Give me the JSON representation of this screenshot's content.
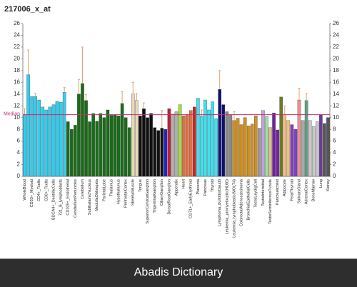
{
  "chart_data": {
    "type": "bar",
    "title": "217006_x_at",
    "categories": [
      "WholeBlood",
      null,
      "CD33+_Myeloid",
      null,
      "CD4+_Tcells",
      null,
      "CD8+_Tcells",
      null,
      "BDCA4+_DentriticCells",
      null,
      "721_B_lymphoblasts",
      null,
      "CD105+_Endothelial",
      null,
      "CerebellumPeduncles",
      null,
      "Cerebellum",
      null,
      "SubthalamicNucleus",
      null,
      "MedullaOblongata",
      null,
      "ParietalLobe",
      null,
      "Thalamus",
      null,
      "Hypothalamus",
      null,
      "PrefrontalCortex",
      null,
      "SkeletalMuscle",
      null,
      "Tongue",
      null,
      "SuperiorCervicalGanglion",
      null,
      "TrigeminalGanglion",
      null,
      "CiliaryGanglion",
      null,
      "DorsalRootGanglion",
      null,
      "Appendix",
      null,
      "Heart",
      null,
      "CD71+_EarlyErythroid",
      null,
      "Placenta",
      null,
      "Pancreas",
      null,
      "Thyroid",
      null,
      "Lymphoma_burkitts(Daudi)",
      null,
      "Leukemia_promyelocytic(HL60)",
      null,
      "Leukemia_lymphoblastic(MOLT4)",
      null,
      "ColorectalAdenocarcinoma",
      null,
      "BronchialEpithelialCells",
      null,
      "TestisLeydigCell",
      null,
      "TestisInterstitial",
      null,
      "TestisSeminiferousTubule",
      null,
      "PancreaticIslet",
      null,
      "Adipocyte",
      null,
      "FetalThyroid",
      null,
      "SalivaryGland",
      null,
      "AdrenalCortex",
      null,
      "BoneMarrow",
      null,
      "Lung",
      null,
      "Kidney"
    ],
    "values": [
      10.5,
      17.3,
      13.6,
      13.6,
      13,
      11.8,
      11.3,
      11.8,
      12.2,
      12.8,
      12.6,
      14.3,
      9.3,
      8,
      8.7,
      14,
      15.8,
      12.9,
      9.3,
      10.7,
      9.4,
      10.7,
      10,
      11.3,
      10.4,
      10.5,
      10.3,
      12.4,
      10,
      8.3,
      14,
      12.9,
      10.3,
      11.5,
      10,
      10.7,
      8.3,
      7.8,
      8.2,
      8,
      11.5,
      10.6,
      11,
      12.2,
      10.3,
      10.5,
      11.2,
      11.8,
      13.3,
      10.3,
      13,
      11.3,
      12.7,
      9.8,
      14.8,
      12.2,
      11,
      10.5,
      9.5,
      9.9,
      8.8,
      10,
      8.6,
      8.9,
      10.3,
      8.2,
      11.2,
      10.2,
      8.3,
      10.8,
      7.9,
      13.5,
      10.5,
      9.5,
      8.8,
      8,
      13,
      9.5,
      12.9,
      9.5,
      8.5,
      9.3,
      10.5,
      9,
      10
    ],
    "colors": [
      "#33ccee",
      "#33ccee",
      "#33ccee",
      "#33ccee",
      "#33ccee",
      "#33ccee",
      "#33ccee",
      "#33ccee",
      "#33ccee",
      "#33ccee",
      "#33ccee",
      "#33ccee",
      "#1a6b1a",
      "#1a6b1a",
      "#1a6b1a",
      "#1a6b1a",
      "#1a6b1a",
      "#1a6b1a",
      "#1a6b1a",
      "#1a6b1a",
      "#1a6b1a",
      "#1a6b1a",
      "#1a6b1a",
      "#1a6b1a",
      "#1a6b1a",
      "#1a6b1a",
      "#1a6b1a",
      "#1a6b1a",
      "#1a6b1a",
      "#1a6b1a",
      "#e8d8b8",
      "#e8d8b8",
      "#111111",
      "#111111",
      "#111111",
      "#111111",
      "#111111",
      "#111111",
      "#111111",
      "#2020d0",
      "#c02030",
      "#b0b0b0",
      "#b0b0b0",
      "#a0e040",
      "#e07040",
      "#e07040",
      "#e07040",
      "#d02020",
      "#40e0f0",
      "#40e0f0",
      "#40e0f0",
      "#40e0f0",
      "#40e0f0",
      "#40e0f0",
      "#101070",
      "#101070",
      "#888888",
      "#888888",
      "#d09020",
      "#d09020",
      "#d09020",
      "#d09020",
      "#d09020",
      "#d09020",
      "#d09020",
      "#9a9a9a",
      "#c0a0e0",
      "#a0e0a0",
      "#d8c090",
      "#7020a0",
      "#7020a0",
      "#6b7a2a",
      "#f0c080",
      "#f0c080",
      "#8040c0",
      "#8040c0",
      "#e89090",
      "#a8a8a8",
      "#60a080",
      "#c8c8c8",
      "#c8c8c8",
      "#c8c8c8",
      "#6a3aa0",
      "#555555",
      "#555555"
    ],
    "errors": [
      1,
      4.2,
      null,
      0.5,
      null,
      null,
      null,
      null,
      null,
      null,
      null,
      0.8,
      null,
      null,
      null,
      2.5,
      6.2,
      1,
      null,
      null,
      null,
      null,
      null,
      null,
      null,
      null,
      null,
      2,
      null,
      null,
      2,
      1.2,
      null,
      1,
      null,
      null,
      null,
      null,
      3,
      null,
      null,
      null,
      null,
      null,
      null,
      null,
      null,
      null,
      null,
      1,
      null,
      null,
      null,
      null,
      3.2,
      null,
      null,
      null,
      1.5,
      null,
      null,
      null,
      null,
      null,
      null,
      null,
      null,
      null,
      null,
      null,
      null,
      null,
      1.5,
      null,
      null,
      null,
      2,
      null,
      1.2,
      null,
      null,
      null,
      null,
      null,
      null
    ],
    "error_color": "#e0a070",
    "median": 10.5,
    "median_label": "Median",
    "median_color": "#c03070",
    "ylim": [
      0,
      26
    ],
    "yticks": [
      0,
      2,
      4,
      6,
      8,
      10,
      12,
      14,
      16,
      18,
      20,
      22,
      24,
      26
    ],
    "grid": false
  },
  "footer": {
    "text": "Abadis Dictionary"
  }
}
